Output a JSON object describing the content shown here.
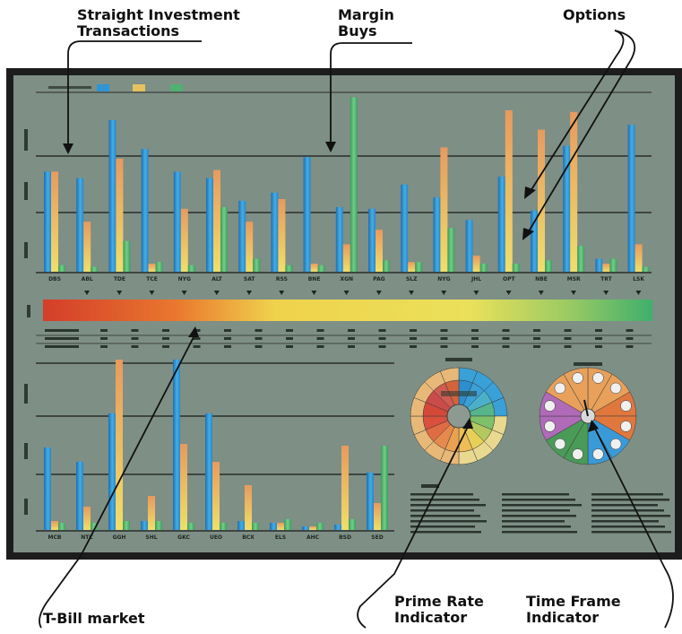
{
  "callouts": {
    "straight": "Straight Investment\nTransactions",
    "margin": "Margin\nBuys",
    "options": "Options",
    "tbill": "T-Bill market",
    "prime": "Prime Rate\nIndicator",
    "timeframe": "Time Frame\nIndicator"
  },
  "colors": {
    "blue": "#2f95d6",
    "orange": "#e8a060",
    "green": "#52b070",
    "panel": "#7e8f86",
    "frame": "#1d1d1d"
  },
  "top_chart": {
    "tickers": [
      "DBS",
      "ABL",
      "TDE",
      "TCE",
      "NYG",
      "ALT",
      "SAT",
      "RSS",
      "BNE",
      "XGN",
      "PAG",
      "SLZ",
      "NYG",
      "JHL",
      "OPT",
      "NBE",
      "MSR",
      "TRT",
      "LSK"
    ],
    "blue": [
      0.62,
      0.58,
      0.94,
      0.76,
      0.62,
      0.58,
      0.44,
      0.49,
      0.71,
      0.4,
      0.39,
      0.54,
      0.46,
      0.32,
      0.59,
      0.38,
      0.78,
      0.08,
      0.91
    ],
    "orange": [
      0.62,
      0.31,
      0.7,
      0.05,
      0.39,
      0.63,
      0.31,
      0.45,
      0.05,
      0.17,
      0.26,
      0.06,
      0.77,
      0.1,
      1.0,
      0.88,
      0.99,
      0.05,
      0.17
    ],
    "green": [
      0.04,
      0.03,
      0.19,
      0.06,
      0.04,
      0.4,
      0.08,
      0.04,
      0.04,
      1.08,
      0.07,
      0.06,
      0.27,
      0.05,
      0.05,
      0.07,
      0.16,
      0.08,
      0.03
    ]
  },
  "bottom_chart": {
    "tickers": [
      "MCB",
      "NTC",
      "GGH",
      "SHL",
      "GKC",
      "UEO",
      "BCX",
      "ELS",
      "AHC",
      "BSD",
      "SED"
    ],
    "blue": [
      0.46,
      0.38,
      0.65,
      0.05,
      0.95,
      0.65,
      0.05,
      0.04,
      0.02,
      0.03,
      0.32
    ],
    "orange": [
      0.05,
      0.13,
      0.95,
      0.19,
      0.48,
      0.38,
      0.25,
      0.04,
      0.02,
      0.47,
      0.15
    ],
    "green": [
      0.04,
      0.04,
      0.05,
      0.05,
      0.04,
      0.04,
      0.04,
      0.06,
      0.04,
      0.06,
      0.47
    ]
  }
}
